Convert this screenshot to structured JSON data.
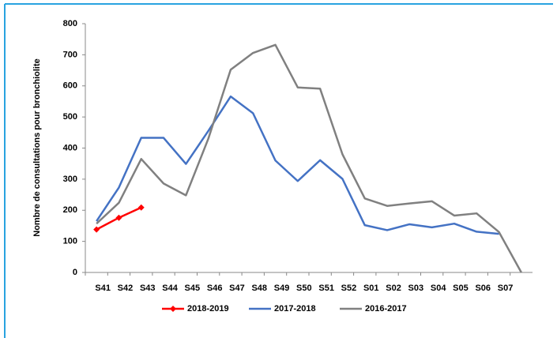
{
  "chart_data": {
    "type": "line",
    "y_label": "Nombre de consultations pour bronchiolite",
    "categories": [
      "S41",
      "S42",
      "S43",
      "S44",
      "S45",
      "S46",
      "S47",
      "S48",
      "S49",
      "S50",
      "S51",
      "S52",
      "S01",
      "S02",
      "S03",
      "S04",
      "S05",
      "S06",
      "S07",
      null
    ],
    "series": [
      {
        "name": "2018-2019",
        "color": "#ff0000",
        "marker": "diamond",
        "values": [
          138,
          176,
          209,
          null,
          null,
          null,
          null,
          null,
          null,
          null,
          null,
          null,
          null,
          null,
          null,
          null,
          null,
          null,
          null,
          null
        ]
      },
      {
        "name": "2017-2018",
        "color": "#4472c4",
        "values": [
          165,
          273,
          433,
          433,
          349,
          455,
          566,
          512,
          360,
          294,
          361,
          301,
          152,
          136,
          155,
          145,
          157,
          131,
          124,
          null
        ]
      },
      {
        "name": "2016-2017",
        "color": "#808080",
        "values": [
          157,
          224,
          365,
          286,
          248,
          430,
          652,
          706,
          732,
          595,
          591,
          380,
          238,
          214,
          222,
          229,
          183,
          190,
          130,
          0
        ]
      }
    ],
    "ylim": [
      0,
      800
    ],
    "yticks": [
      0,
      100,
      200,
      300,
      400,
      500,
      600,
      700,
      800
    ],
    "legend": "bottom"
  }
}
